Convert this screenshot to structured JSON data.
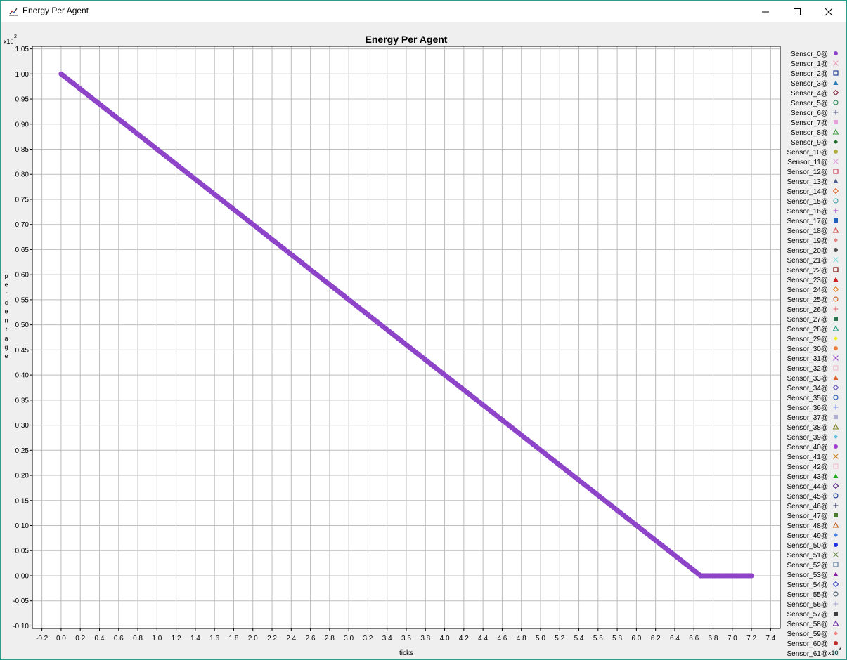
{
  "window": {
    "title": "Energy Per Agent",
    "icons": {
      "app": "chart-app-icon",
      "minimize": "minimize-icon",
      "maximize": "maximize-icon",
      "close": "close-icon"
    }
  },
  "chart_data": {
    "type": "scatter",
    "title": "Energy Per Agent",
    "xlabel": "ticks",
    "ylabel": "percentage",
    "y_multiplier_label": "x10",
    "y_multiplier_exp": "2",
    "x_multiplier_label": "x10",
    "x_multiplier_exp": "3",
    "xlim": [
      -0.3,
      7.5
    ],
    "ylim": [
      -0.105,
      1.055
    ],
    "x_ticks": [
      "-0.2",
      "0.0",
      "0.2",
      "0.4",
      "0.6",
      "0.8",
      "1.0",
      "1.2",
      "1.4",
      "1.6",
      "1.8",
      "2.0",
      "2.2",
      "2.4",
      "2.6",
      "2.8",
      "3.0",
      "3.2",
      "3.4",
      "3.6",
      "3.8",
      "4.0",
      "4.2",
      "4.4",
      "4.6",
      "4.8",
      "5.0",
      "5.2",
      "5.4",
      "5.6",
      "5.8",
      "6.0",
      "6.2",
      "6.4",
      "6.6",
      "6.8",
      "7.0",
      "7.2",
      "7.4"
    ],
    "y_ticks": [
      "1.05",
      "1.00",
      "0.95",
      "0.90",
      "0.85",
      "0.80",
      "0.75",
      "0.70",
      "0.65",
      "0.60",
      "0.55",
      "0.50",
      "0.45",
      "0.40",
      "0.35",
      "0.30",
      "0.25",
      "0.20",
      "0.15",
      "0.10",
      "0.05",
      "0.00",
      "-0.05",
      "-0.10"
    ],
    "grid": true,
    "legend_position": "right",
    "series_color": "#8e44c8",
    "data_segments": [
      {
        "x_start": 0.0,
        "y_start": 1.0,
        "x_end": 6.67,
        "y_end": 0.0
      },
      {
        "x_start": 6.67,
        "y_start": 0.0,
        "x_end": 7.2,
        "y_end": 0.0
      }
    ],
    "legend": [
      {
        "name": "Sensor_0@",
        "marker": "circle-filled",
        "color": "#8e44c8"
      },
      {
        "name": "Sensor_1@",
        "marker": "x",
        "color": "#e89ab2"
      },
      {
        "name": "Sensor_2@",
        "marker": "square-open",
        "color": "#1f3c8f"
      },
      {
        "name": "Sensor_3@",
        "marker": "triangle-filled",
        "color": "#2a7fb8"
      },
      {
        "name": "Sensor_4@",
        "marker": "diamond-open",
        "color": "#7a1f3a"
      },
      {
        "name": "Sensor_5@",
        "marker": "circle-open",
        "color": "#2e8b57"
      },
      {
        "name": "Sensor_6@",
        "marker": "plus",
        "color": "#4a5080"
      },
      {
        "name": "Sensor_7@",
        "marker": "square-filled",
        "color": "#e8a0d8"
      },
      {
        "name": "Sensor_8@",
        "marker": "triangle-open",
        "color": "#3a9a3a"
      },
      {
        "name": "Sensor_9@",
        "marker": "diamond-filled",
        "color": "#1f6b2a"
      },
      {
        "name": "Sensor_10@",
        "marker": "circle-filled",
        "color": "#b0b040"
      },
      {
        "name": "Sensor_11@",
        "marker": "x",
        "color": "#e0a0e0"
      },
      {
        "name": "Sensor_12@",
        "marker": "square-open",
        "color": "#d04060"
      },
      {
        "name": "Sensor_13@",
        "marker": "triangle-filled",
        "color": "#4a5a8a"
      },
      {
        "name": "Sensor_14@",
        "marker": "diamond-open",
        "color": "#e06020"
      },
      {
        "name": "Sensor_15@",
        "marker": "circle-open",
        "color": "#40a0a0"
      },
      {
        "name": "Sensor_16@",
        "marker": "plus",
        "color": "#a040c0"
      },
      {
        "name": "Sensor_17@",
        "marker": "square-filled",
        "color": "#2060c0"
      },
      {
        "name": "Sensor_18@",
        "marker": "triangle-open",
        "color": "#d04040"
      },
      {
        "name": "Sensor_19@",
        "marker": "diamond-filled",
        "color": "#e08080"
      },
      {
        "name": "Sensor_20@",
        "marker": "circle-filled",
        "color": "#505050"
      },
      {
        "name": "Sensor_21@",
        "marker": "x",
        "color": "#80e0e0"
      },
      {
        "name": "Sensor_22@",
        "marker": "square-open",
        "color": "#801010"
      },
      {
        "name": "Sensor_23@",
        "marker": "triangle-filled",
        "color": "#d02020"
      },
      {
        "name": "Sensor_24@",
        "marker": "diamond-open",
        "color": "#e08020"
      },
      {
        "name": "Sensor_25@",
        "marker": "circle-open",
        "color": "#d06020"
      },
      {
        "name": "Sensor_26@",
        "marker": "plus",
        "color": "#e06060"
      },
      {
        "name": "Sensor_27@",
        "marker": "square-filled",
        "color": "#2e7050"
      },
      {
        "name": "Sensor_28@",
        "marker": "triangle-open",
        "color": "#20a080"
      },
      {
        "name": "Sensor_29@",
        "marker": "diamond-filled",
        "color": "#f0f020"
      },
      {
        "name": "Sensor_30@",
        "marker": "circle-filled",
        "color": "#f08040"
      },
      {
        "name": "Sensor_31@",
        "marker": "x",
        "color": "#9040d0"
      },
      {
        "name": "Sensor_32@",
        "marker": "square-open",
        "color": "#f0c0d0"
      },
      {
        "name": "Sensor_33@",
        "marker": "triangle-filled",
        "color": "#e06030"
      },
      {
        "name": "Sensor_34@",
        "marker": "diamond-open",
        "color": "#6050c0"
      },
      {
        "name": "Sensor_35@",
        "marker": "circle-open",
        "color": "#3060c0"
      },
      {
        "name": "Sensor_36@",
        "marker": "plus",
        "color": "#8090e0"
      },
      {
        "name": "Sensor_37@",
        "marker": "square-filled",
        "color": "#b0b0d0"
      },
      {
        "name": "Sensor_38@",
        "marker": "triangle-open",
        "color": "#808020"
      },
      {
        "name": "Sensor_39@",
        "marker": "diamond-filled",
        "color": "#60c0e0"
      },
      {
        "name": "Sensor_40@",
        "marker": "circle-filled",
        "color": "#a040d0"
      },
      {
        "name": "Sensor_41@",
        "marker": "x",
        "color": "#d08020"
      },
      {
        "name": "Sensor_42@",
        "marker": "square-open",
        "color": "#f0c0d0"
      },
      {
        "name": "Sensor_43@",
        "marker": "triangle-filled",
        "color": "#20b020"
      },
      {
        "name": "Sensor_44@",
        "marker": "diamond-open",
        "color": "#502080"
      },
      {
        "name": "Sensor_45@",
        "marker": "circle-open",
        "color": "#2040a0"
      },
      {
        "name": "Sensor_46@",
        "marker": "plus",
        "color": "#202050"
      },
      {
        "name": "Sensor_47@",
        "marker": "square-filled",
        "color": "#4a7a30"
      },
      {
        "name": "Sensor_48@",
        "marker": "triangle-open",
        "color": "#c06020"
      },
      {
        "name": "Sensor_49@",
        "marker": "diamond-filled",
        "color": "#4080e0"
      },
      {
        "name": "Sensor_50@",
        "marker": "circle-filled",
        "color": "#2030e0"
      },
      {
        "name": "Sensor_51@",
        "marker": "x",
        "color": "#709050"
      },
      {
        "name": "Sensor_52@",
        "marker": "square-open",
        "color": "#6080a0"
      },
      {
        "name": "Sensor_53@",
        "marker": "triangle-filled",
        "color": "#8020a0"
      },
      {
        "name": "Sensor_54@",
        "marker": "diamond-open",
        "color": "#3040c0"
      },
      {
        "name": "Sensor_55@",
        "marker": "circle-open",
        "color": "#506070"
      },
      {
        "name": "Sensor_56@",
        "marker": "plus",
        "color": "#a0a0d0"
      },
      {
        "name": "Sensor_57@",
        "marker": "square-filled",
        "color": "#404040"
      },
      {
        "name": "Sensor_58@",
        "marker": "triangle-open",
        "color": "#6020a0"
      },
      {
        "name": "Sensor_59@",
        "marker": "diamond-filled",
        "color": "#f08080"
      },
      {
        "name": "Sensor_60@",
        "marker": "circle-filled",
        "color": "#c03030"
      },
      {
        "name": "Sensor_61@",
        "marker": "x",
        "color": "#80e0e0"
      }
    ]
  }
}
